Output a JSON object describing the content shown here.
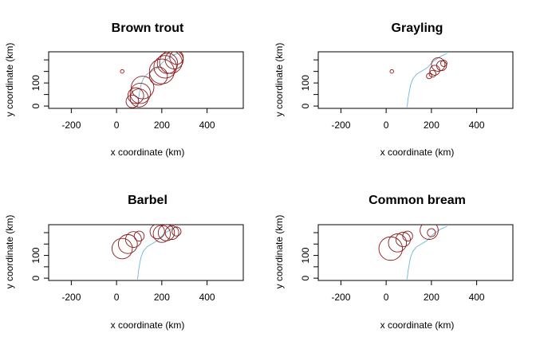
{
  "colors": {
    "circle": "#8b1a1a",
    "river": "#6cb8d4",
    "axis": "#000000",
    "background": "#ffffff"
  },
  "chart_data": [
    {
      "type": "scatter",
      "title": "Brown trout",
      "xlabel": "x coordinate (km)",
      "ylabel": "y coordinate (km)",
      "xticks": [
        -200,
        0,
        200,
        400
      ],
      "yticks": [
        0,
        100
      ],
      "xlim": [
        -300,
        560
      ],
      "ylim": [
        -10,
        235
      ],
      "grid": false,
      "points": [
        {
          "x": 25,
          "y": 150,
          "r": 8
        },
        {
          "x": 70,
          "y": 20,
          "r": 28
        },
        {
          "x": 85,
          "y": 45,
          "r": 35
        },
        {
          "x": 100,
          "y": 35,
          "r": 40
        },
        {
          "x": 105,
          "y": 55,
          "r": 45
        },
        {
          "x": 115,
          "y": 80,
          "r": 50
        },
        {
          "x": 185,
          "y": 130,
          "r": 40
        },
        {
          "x": 200,
          "y": 150,
          "r": 55
        },
        {
          "x": 215,
          "y": 170,
          "r": 50
        },
        {
          "x": 225,
          "y": 185,
          "r": 45
        },
        {
          "x": 240,
          "y": 190,
          "r": 50
        },
        {
          "x": 255,
          "y": 200,
          "r": 40
        },
        {
          "x": 265,
          "y": 210,
          "r": 30
        }
      ]
    },
    {
      "type": "scatter",
      "title": "Grayling",
      "xlabel": "x coordinate (km)",
      "ylabel": "y coordinate (km)",
      "xticks": [
        -200,
        0,
        200,
        400
      ],
      "yticks": [
        0,
        100
      ],
      "xlim": [
        -300,
        560
      ],
      "ylim": [
        -10,
        235
      ],
      "grid": false,
      "points": [
        {
          "x": 25,
          "y": 150,
          "r": 8
        },
        {
          "x": 190,
          "y": 130,
          "r": 12
        },
        {
          "x": 205,
          "y": 140,
          "r": 15
        },
        {
          "x": 215,
          "y": 155,
          "r": 22
        },
        {
          "x": 230,
          "y": 180,
          "r": 30
        },
        {
          "x": 245,
          "y": 175,
          "r": 22
        },
        {
          "x": 255,
          "y": 185,
          "r": 14
        }
      ]
    },
    {
      "type": "scatter",
      "title": "Barbel",
      "xlabel": "x coordinate (km)",
      "ylabel": "y coordinate (km)",
      "xticks": [
        -200,
        0,
        200,
        400
      ],
      "yticks": [
        0,
        100
      ],
      "xlim": [
        -300,
        560
      ],
      "ylim": [
        -10,
        235
      ],
      "grid": false,
      "points": [
        {
          "x": 25,
          "y": 130,
          "r": 45
        },
        {
          "x": 50,
          "y": 150,
          "r": 42
        },
        {
          "x": 75,
          "y": 170,
          "r": 35
        },
        {
          "x": 100,
          "y": 185,
          "r": 22
        },
        {
          "x": 180,
          "y": 205,
          "r": 32
        },
        {
          "x": 200,
          "y": 195,
          "r": 38
        },
        {
          "x": 220,
          "y": 200,
          "r": 36
        },
        {
          "x": 245,
          "y": 200,
          "r": 30
        },
        {
          "x": 265,
          "y": 205,
          "r": 20
        }
      ]
    },
    {
      "type": "scatter",
      "title": "Common bream",
      "xlabel": "x coordinate (km)",
      "ylabel": "y coordinate (km)",
      "xticks": [
        -200,
        0,
        200,
        400
      ],
      "yticks": [
        0,
        100
      ],
      "xlim": [
        -300,
        560
      ],
      "ylim": [
        -10,
        235
      ],
      "grid": false,
      "points": [
        {
          "x": 20,
          "y": 130,
          "r": 52
        },
        {
          "x": 50,
          "y": 155,
          "r": 40
        },
        {
          "x": 75,
          "y": 170,
          "r": 32
        },
        {
          "x": 95,
          "y": 185,
          "r": 22
        },
        {
          "x": 190,
          "y": 210,
          "r": 40
        },
        {
          "x": 200,
          "y": 200,
          "r": 18
        }
      ]
    }
  ],
  "river": [
    [
      270,
      228
    ],
    [
      240,
      215
    ],
    [
      210,
      195
    ],
    [
      180,
      165
    ],
    [
      155,
      150
    ],
    [
      135,
      138
    ],
    [
      118,
      118
    ],
    [
      108,
      92
    ],
    [
      102,
      62
    ],
    [
      97,
      32
    ],
    [
      94,
      5
    ],
    [
      92,
      -5
    ]
  ]
}
